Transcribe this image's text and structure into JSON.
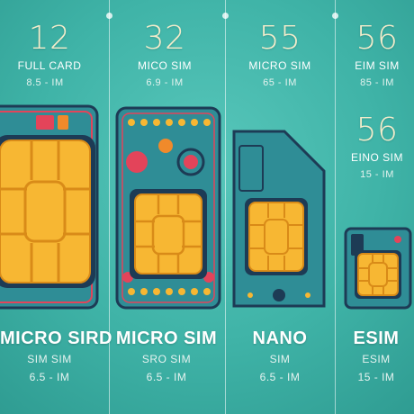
{
  "columns": [
    {
      "id": "full",
      "number": "12",
      "label": "FULL CARD",
      "size": "8.5 - IM",
      "name": "MICRO SIRD",
      "subname": "SIM SIM",
      "subsize": "6.5 - IM"
    },
    {
      "id": "micro1",
      "number": "32",
      "label": "MICO SIM",
      "size": "6.9 - IM",
      "name": "MICRO SIM",
      "subname": "SRO SIM",
      "subsize": "6.5 - IM"
    },
    {
      "id": "micro2",
      "number": "55",
      "label": "MICRO SIM",
      "size": "65 - IM",
      "name": "NANO",
      "subname": "SIM",
      "subsize": "6.5 - IM"
    },
    {
      "id": "esim",
      "number": "56",
      "label": "EIM SIM",
      "size": "85 - IM",
      "number2": "56",
      "label2": "EINO SIM",
      "size2": "15 - IM",
      "name": "ESIM",
      "subname": "ESIM",
      "subsize": "15 - IM"
    }
  ],
  "colors": {
    "background": "#48bbaf",
    "card_body": "#2f8d96",
    "card_border": "#1d3b55",
    "chip": "#f7b733",
    "chip_line": "#d98b18",
    "accent_red": "#e3445a",
    "accent_orange": "#f08a2b"
  }
}
